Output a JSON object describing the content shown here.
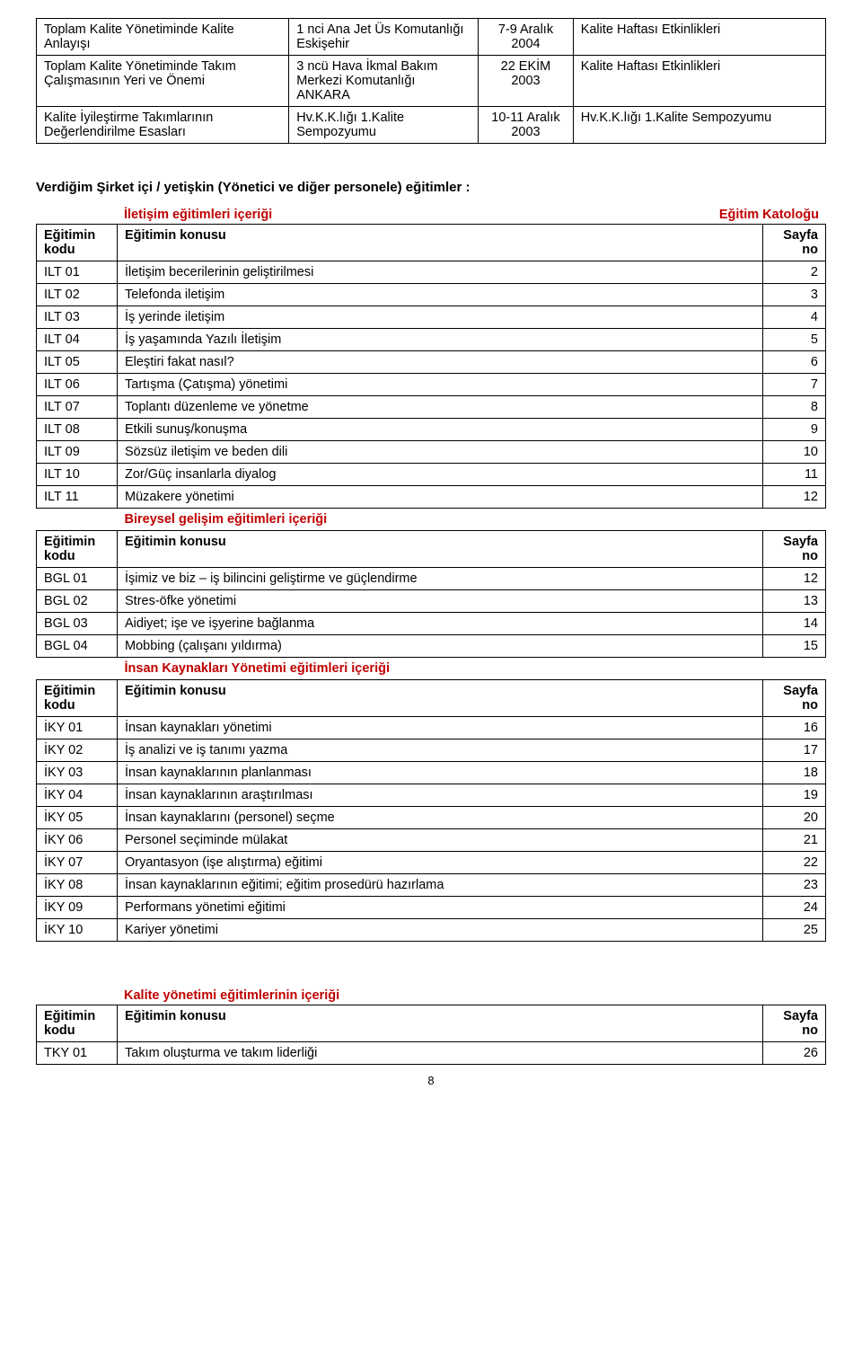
{
  "top_table": {
    "rows": [
      {
        "c1": "Toplam Kalite Yönetiminde Kalite Anlayışı",
        "c2": "1 nci Ana Jet Üs Komutanlığı Eskişehir",
        "c3": "7-9 Aralık 2004",
        "c4": "Kalite Haftası Etkinlikleri"
      },
      {
        "c1": "Toplam Kalite Yönetiminde Takım Çalışmasının Yeri ve Önemi",
        "c2": "3 ncü  Hava İkmal Bakım Merkezi Komutanlığı ANKARA",
        "c3": "22 EKİM 2003",
        "c4": "Kalite Haftası Etkinlikleri"
      },
      {
        "c1": "Kalite İyileştirme Takımlarının Değerlendirilme Esasları",
        "c2": "Hv.K.K.lığı 1.Kalite Sempozyumu",
        "c3": "10-11 Aralık 2003",
        "c4": "Hv.K.K.lığı 1.Kalite Sempozyumu"
      }
    ]
  },
  "main_heading": "Verdiğim Şirket içi / yetişkin (Yönetici ve diğer personele) eğitimler :",
  "section_label_left": "İletişim eğitimleri içeriği",
  "section_label_right": "Eğitim Katoloğu",
  "col_kodu": "Eğitimin kodu",
  "col_konu": "Eğitimin konusu",
  "col_sayfa": "Sayfa no",
  "sections": [
    {
      "title": "",
      "rows": [
        {
          "code": "ILT 01",
          "topic": "İletişim becerilerinin geliştirilmesi",
          "page": "2"
        },
        {
          "code": "ILT 02",
          "topic": "Telefonda iletişim",
          "page": "3"
        },
        {
          "code": "ILT 03",
          "topic": "İş yerinde iletişim",
          "page": "4"
        },
        {
          "code": "ILT 04",
          "topic": "İş yaşamında Yazılı İletişim",
          "page": "5"
        },
        {
          "code": "ILT 05",
          "topic": "Eleştiri fakat nasıl?",
          "page": "6"
        },
        {
          "code": "ILT 06",
          "topic": "Tartışma (Çatışma) yönetimi",
          "page": "7"
        },
        {
          "code": "ILT 07",
          "topic": "Toplantı düzenleme ve yönetme",
          "page": "8"
        },
        {
          "code": "ILT 08",
          "topic": "Etkili sunuş/konuşma",
          "page": "9"
        },
        {
          "code": "ILT 09",
          "topic": "Sözsüz iletişim ve beden dili",
          "page": "10"
        },
        {
          "code": "ILT 10",
          "topic": "Zor/Güç insanlarla diyalog",
          "page": "11"
        },
        {
          "code": "ILT 11",
          "topic": "Müzakere yönetimi",
          "page": "12"
        }
      ]
    },
    {
      "title": "Bireysel gelişim eğitimleri içeriği",
      "rows": [
        {
          "code": "BGL 01",
          "topic": "İşimiz ve biz – iş bilincini geliştirme ve güçlendirme",
          "page": "12"
        },
        {
          "code": "BGL 02",
          "topic": "Stres-öfke yönetimi",
          "page": "13"
        },
        {
          "code": "BGL 03",
          "topic": "Aidiyet; işe ve işyerine bağlanma",
          "page": "14"
        },
        {
          "code": "BGL 04",
          "topic": "Mobbing (çalışanı yıldırma)",
          "page": "15"
        }
      ]
    },
    {
      "title": "İnsan Kaynakları Yönetimi eğitimleri içeriği",
      "rows": [
        {
          "code": "İKY 01",
          "topic": "İnsan kaynakları yönetimi",
          "page": "16"
        },
        {
          "code": "İKY 02",
          "topic": "İş analizi ve iş tanımı yazma",
          "page": "17"
        },
        {
          "code": "İKY 03",
          "topic": "İnsan kaynaklarının planlanması",
          "page": "18"
        },
        {
          "code": "İKY 04",
          "topic": "İnsan kaynaklarının araştırılması",
          "page": "19"
        },
        {
          "code": "İKY 05",
          "topic": "İnsan kaynaklarını (personel) seçme",
          "page": "20"
        },
        {
          "code": "İKY 06",
          "topic": "Personel seçiminde mülakat",
          "page": "21"
        },
        {
          "code": "İKY 07",
          "topic": "Oryantasyon (işe alıştırma) eğitimi",
          "page": "22"
        },
        {
          "code": "İKY 08",
          "topic": "İnsan kaynaklarının eğitimi; eğitim prosedürü hazırlama",
          "page": "23"
        },
        {
          "code": "İKY 09",
          "topic": "Performans yönetimi  eğitimi",
          "page": "24"
        },
        {
          "code": "İKY 10",
          "topic": "Kariyer yönetimi",
          "page": "25"
        }
      ]
    }
  ],
  "bottom_section_title": "Kalite yönetimi eğitimlerinin içeriği",
  "bottom_row": {
    "code": "TKY 01",
    "topic": "Takım oluşturma ve takım liderliği",
    "page": "26"
  },
  "page_number": "8",
  "colors": {
    "red": "#c00000",
    "text": "#000000",
    "bg": "#ffffff",
    "border": "#000000"
  }
}
